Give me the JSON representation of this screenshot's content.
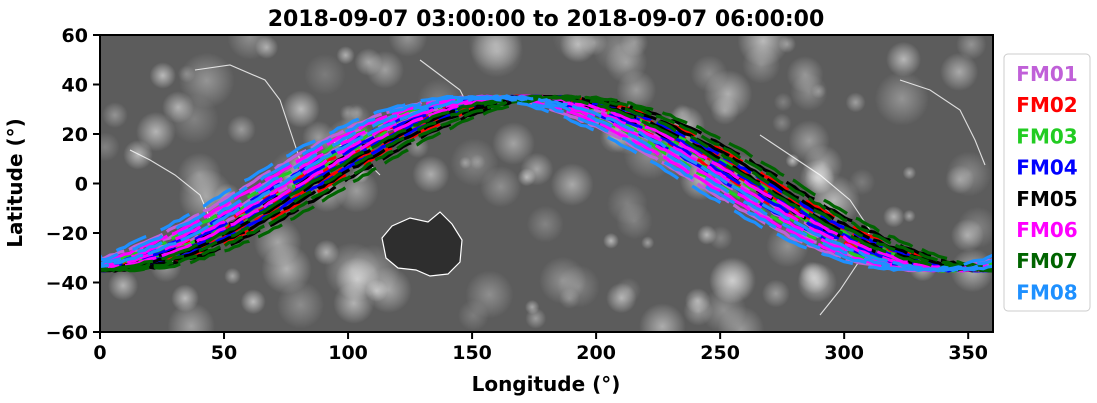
{
  "chart_data": {
    "type": "line",
    "title": "2018-09-07 03:00:00 to 2018-09-07 06:00:00",
    "xlabel": "Longitude (°)",
    "ylabel": "Latitude (°)",
    "xlim": [
      0,
      360
    ],
    "ylim": [
      -60,
      60
    ],
    "xticks": [
      0,
      50,
      100,
      150,
      200,
      250,
      300,
      350
    ],
    "yticks": [
      60,
      40,
      20,
      0,
      -20,
      -40,
      -60
    ],
    "grid": false,
    "legend_position": "outside-right",
    "background": "grayscale satellite cloud imagery with white coastlines",
    "track_shape": {
      "peak_lat": 36,
      "peak_lon": 165,
      "inclination_deg": 35
    },
    "series": [
      {
        "name": "FM01",
        "color": "#c060d8",
        "offset_lon": -6
      },
      {
        "name": "FM02",
        "color": "#ff0000",
        "offset_lon": 10
      },
      {
        "name": "FM03",
        "color": "#22cc22",
        "offset_lon": 2
      },
      {
        "name": "FM04",
        "color": "#0000ff",
        "offset_lon": 6
      },
      {
        "name": "FM05",
        "color": "#000000",
        "offset_lon": 14
      },
      {
        "name": "FM06",
        "color": "#ff00ff",
        "offset_lon": -2
      },
      {
        "name": "FM07",
        "color": "#006400",
        "offset_lon": 18
      },
      {
        "name": "FM08",
        "color": "#1e90ff",
        "offset_lon": -10
      }
    ]
  }
}
